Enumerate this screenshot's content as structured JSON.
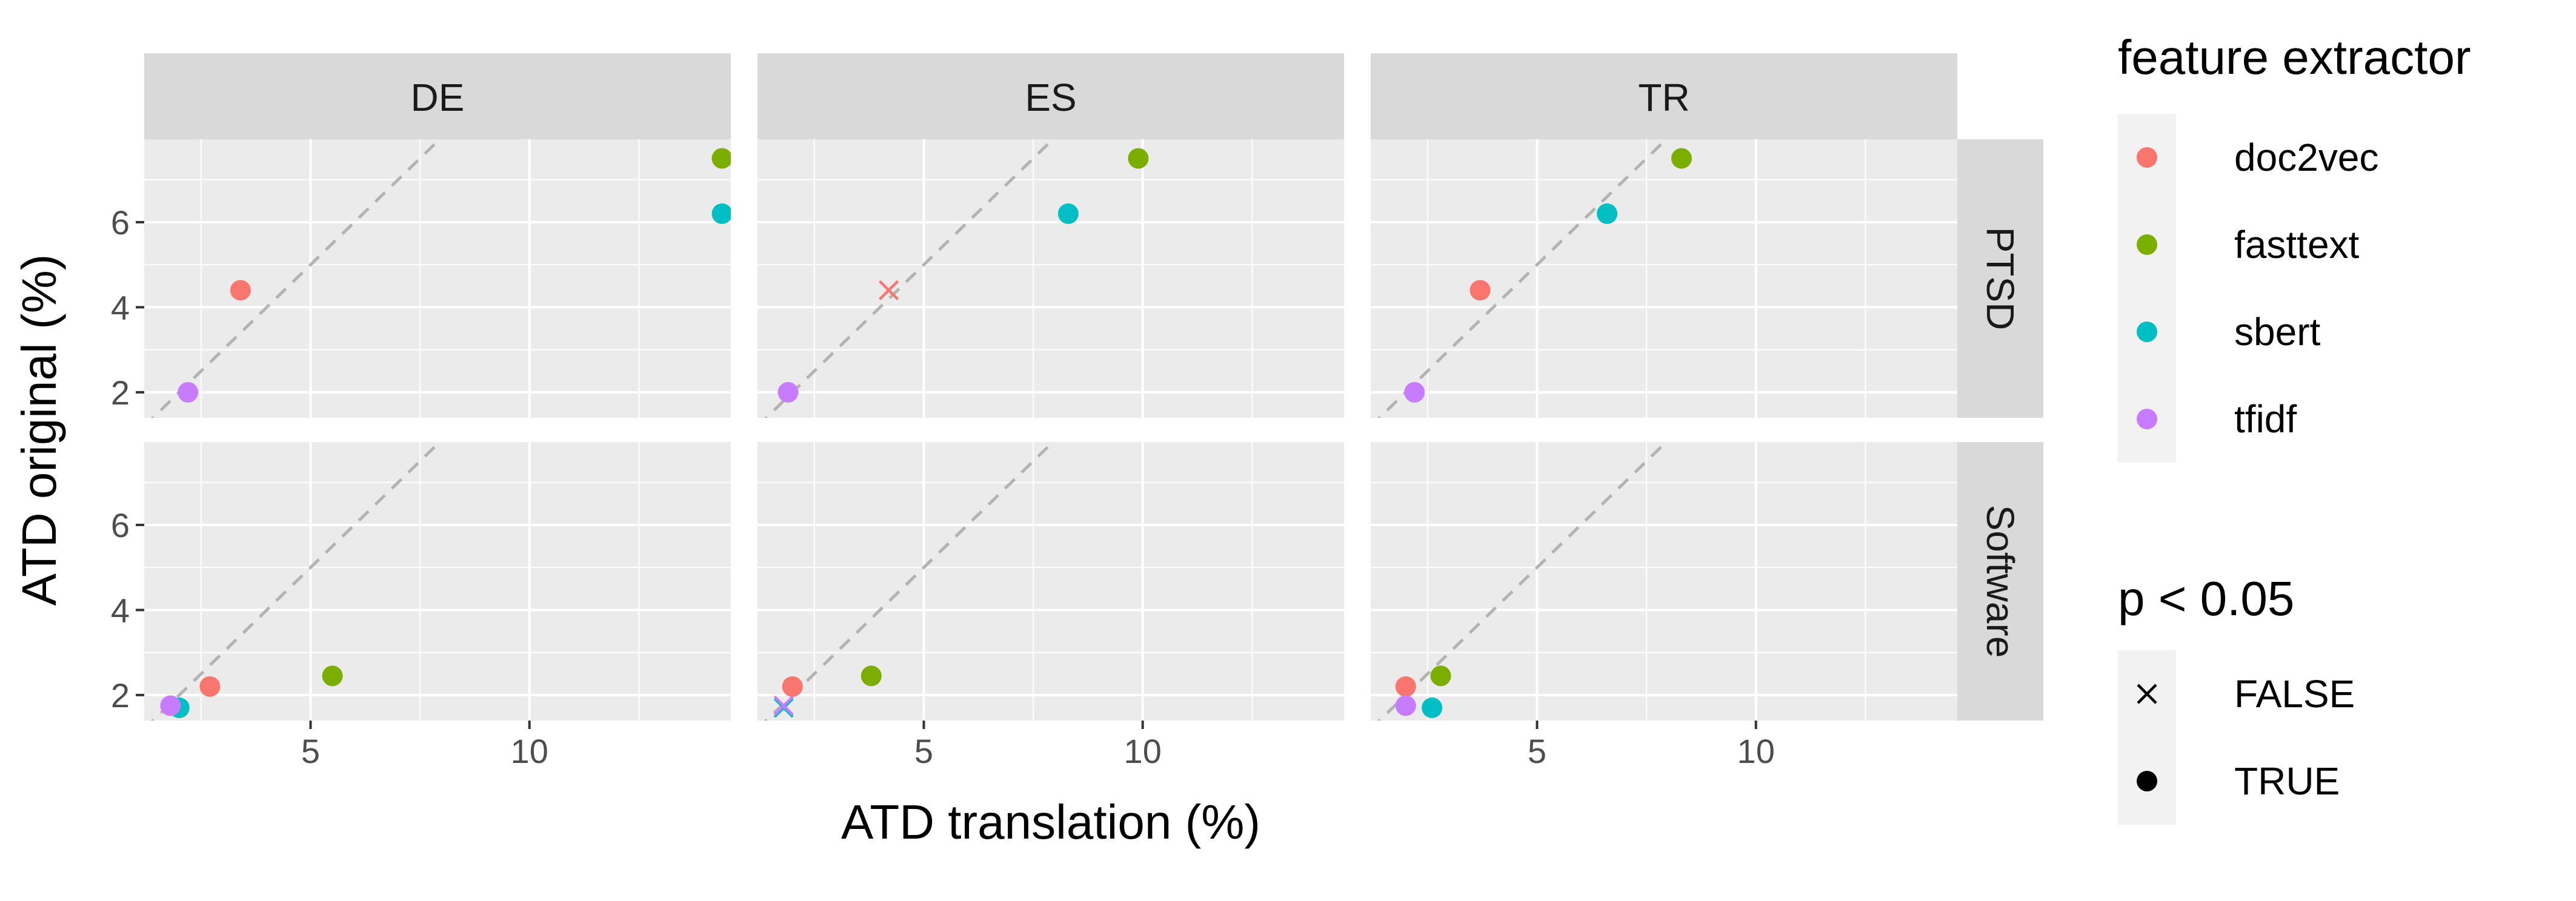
{
  "chart_data": {
    "type": "scatter",
    "xlabel": "ATD translation (%)",
    "ylabel": "ATD original (%)",
    "xlim": [
      1.2,
      14.6
    ],
    "ylim": [
      1.4,
      7.95
    ],
    "x_ticks": [
      5,
      10
    ],
    "y_ticks": [
      2,
      4,
      6
    ],
    "grid": true,
    "reference_line": {
      "style": "dashed",
      "slope": 1,
      "intercept": 0
    },
    "columns": [
      "DE",
      "ES",
      "TR"
    ],
    "rows": [
      "PTSD",
      "Software"
    ],
    "legend": {
      "placement": "right",
      "color_title": "feature extractor",
      "color_entries": [
        {
          "label": "doc2vec",
          "color": "#F8766D"
        },
        {
          "label": "fasttext",
          "color": "#7CAE00"
        },
        {
          "label": "sbert",
          "color": "#00BFC4"
        },
        {
          "label": "tfidf",
          "color": "#C77CFF"
        }
      ],
      "shape_title": "p < 0.05",
      "shape_entries": [
        {
          "label": "FALSE",
          "shape": "cross"
        },
        {
          "label": "TRUE",
          "shape": "circle"
        }
      ]
    },
    "panels": [
      {
        "column": "DE",
        "row": "PTSD",
        "points": [
          {
            "series": "doc2vec",
            "x": 3.4,
            "y": 4.4,
            "significant": true
          },
          {
            "series": "fasttext",
            "x": 14.4,
            "y": 7.5,
            "significant": true
          },
          {
            "series": "sbert",
            "x": 14.4,
            "y": 6.2,
            "significant": true
          },
          {
            "series": "tfidf",
            "x": 2.2,
            "y": 2.0,
            "significant": true
          }
        ]
      },
      {
        "column": "ES",
        "row": "PTSD",
        "points": [
          {
            "series": "doc2vec",
            "x": 4.2,
            "y": 4.4,
            "significant": false
          },
          {
            "series": "fasttext",
            "x": 9.9,
            "y": 7.5,
            "significant": true
          },
          {
            "series": "sbert",
            "x": 8.3,
            "y": 6.2,
            "significant": true
          },
          {
            "series": "tfidf",
            "x": 1.9,
            "y": 2.0,
            "significant": true
          }
        ]
      },
      {
        "column": "TR",
        "row": "PTSD",
        "points": [
          {
            "series": "doc2vec",
            "x": 3.7,
            "y": 4.4,
            "significant": true
          },
          {
            "series": "fasttext",
            "x": 8.3,
            "y": 7.5,
            "significant": true
          },
          {
            "series": "sbert",
            "x": 6.6,
            "y": 6.2,
            "significant": true
          },
          {
            "series": "tfidf",
            "x": 2.2,
            "y": 2.0,
            "significant": true
          }
        ]
      },
      {
        "column": "DE",
        "row": "Software",
        "points": [
          {
            "series": "doc2vec",
            "x": 2.7,
            "y": 2.2,
            "significant": true
          },
          {
            "series": "fasttext",
            "x": 5.5,
            "y": 2.45,
            "significant": true
          },
          {
            "series": "sbert",
            "x": 2.0,
            "y": 1.7,
            "significant": true
          },
          {
            "series": "tfidf",
            "x": 1.8,
            "y": 1.75,
            "significant": true
          }
        ]
      },
      {
        "column": "ES",
        "row": "Software",
        "points": [
          {
            "series": "doc2vec",
            "x": 2.0,
            "y": 2.2,
            "significant": true
          },
          {
            "series": "fasttext",
            "x": 3.8,
            "y": 2.45,
            "significant": true
          },
          {
            "series": "sbert",
            "x": 1.8,
            "y": 1.7,
            "significant": false
          },
          {
            "series": "tfidf",
            "x": 1.8,
            "y": 1.75,
            "significant": false
          }
        ]
      },
      {
        "column": "TR",
        "row": "Software",
        "points": [
          {
            "series": "doc2vec",
            "x": 2.0,
            "y": 2.2,
            "significant": true
          },
          {
            "series": "fasttext",
            "x": 2.8,
            "y": 2.45,
            "significant": true
          },
          {
            "series": "sbert",
            "x": 2.6,
            "y": 1.7,
            "significant": true
          },
          {
            "series": "tfidf",
            "x": 2.0,
            "y": 1.75,
            "significant": true
          }
        ]
      }
    ]
  }
}
